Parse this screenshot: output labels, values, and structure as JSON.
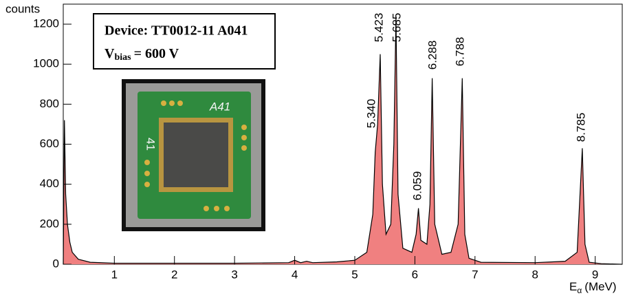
{
  "chart_data": {
    "type": "area",
    "y_label": "counts",
    "x_label": {
      "symbol": "E",
      "subscript": "α",
      "unit": "(MeV)"
    },
    "device_label": "Device: TT0012-11 A041",
    "bias_label": {
      "symbol": "V",
      "subscript": "bias",
      "text": "= 600 V"
    },
    "photo_labels": [
      "A41",
      "41"
    ],
    "peak_labels": [
      "5.340",
      "5.423",
      "5.685",
      "6.059",
      "6.288",
      "6.788",
      "8.785"
    ],
    "color": "#f08080",
    "x": [
      0.15,
      0.17,
      0.19,
      0.22,
      0.26,
      0.3,
      0.4,
      0.6,
      1.0,
      2.0,
      3.0,
      3.9,
      4.0,
      4.1,
      4.2,
      4.3,
      4.7,
      5.0,
      5.2,
      5.3,
      5.34,
      5.38,
      5.423,
      5.46,
      5.52,
      5.6,
      5.65,
      5.685,
      5.72,
      5.8,
      5.95,
      6.02,
      6.059,
      6.1,
      6.2,
      6.25,
      6.288,
      6.33,
      6.45,
      6.6,
      6.72,
      6.788,
      6.83,
      6.9,
      7.1,
      8.0,
      8.5,
      8.7,
      8.785,
      8.83,
      8.9,
      9.1,
      9.45
    ],
    "values": [
      0,
      720,
      350,
      200,
      110,
      60,
      25,
      10,
      5,
      5,
      5,
      8,
      20,
      8,
      15,
      8,
      12,
      20,
      60,
      250,
      560,
      700,
      1050,
      400,
      150,
      200,
      600,
      1240,
      350,
      80,
      60,
      150,
      280,
      120,
      100,
      300,
      930,
      200,
      50,
      60,
      200,
      930,
      150,
      30,
      10,
      8,
      15,
      60,
      580,
      100,
      10,
      3,
      0
    ],
    "xlim": [
      0.15,
      9.45
    ],
    "xticks": [
      1,
      2,
      3,
      4,
      5,
      6,
      7,
      8,
      9
    ],
    "ylim": [
      0,
      1300
    ],
    "yticks": [
      0,
      200,
      400,
      600,
      800,
      1000,
      1200
    ]
  }
}
